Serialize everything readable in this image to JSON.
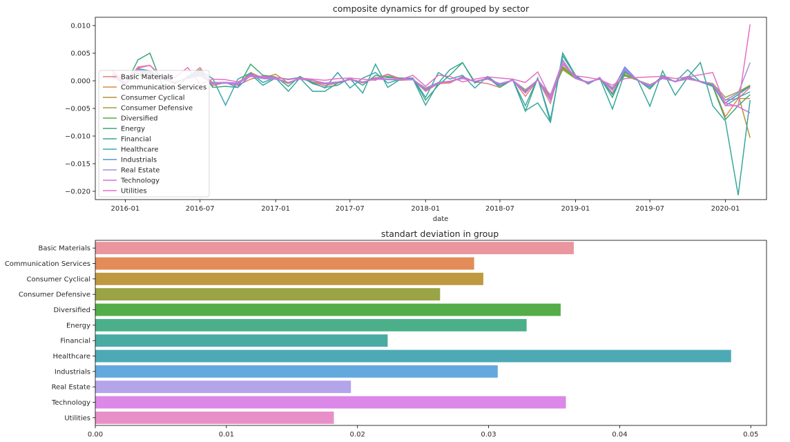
{
  "chart_data": [
    {
      "type": "line",
      "title": "composite dynamics for df grouped by sector",
      "xlabel": "date",
      "ylabel": "",
      "x": [
        "2015-12",
        "2016-01",
        "2016-02",
        "2016-03",
        "2016-04",
        "2016-05",
        "2016-06",
        "2016-07",
        "2016-08",
        "2016-09",
        "2016-10",
        "2016-11",
        "2016-12",
        "2017-01",
        "2017-02",
        "2017-03",
        "2017-04",
        "2017-05",
        "2017-06",
        "2017-07",
        "2017-08",
        "2017-09",
        "2017-10",
        "2017-11",
        "2017-12",
        "2018-01",
        "2018-02",
        "2018-03",
        "2018-04",
        "2018-05",
        "2018-06",
        "2018-07",
        "2018-08",
        "2018-09",
        "2018-10",
        "2018-11",
        "2018-12",
        "2019-01",
        "2019-02",
        "2019-03",
        "2019-04",
        "2019-05",
        "2019-06",
        "2019-07",
        "2019-08",
        "2019-09",
        "2019-10",
        "2019-11",
        "2019-12",
        "2020-01",
        "2020-02",
        "2020-03"
      ],
      "xticks": [
        "2016-01",
        "2016-07",
        "2017-01",
        "2017-07",
        "2018-01",
        "2018-07",
        "2019-01",
        "2019-07",
        "2020-01"
      ],
      "xlim": [
        "2015-10-20",
        "2020-04-10"
      ],
      "ylim": [
        -0.0215,
        0.0115
      ],
      "yticks": [
        0.01,
        0.005,
        0.0,
        -0.005,
        -0.01,
        -0.015,
        -0.02
      ],
      "ytick_labels": [
        "0.010",
        "0.005",
        "0.000",
        "−0.005",
        "−0.010",
        "−0.015",
        "−0.020"
      ],
      "grid": false,
      "legend": "center-left",
      "series": [
        {
          "name": "Basic Materials",
          "color": "#e8797f",
          "values": [
            0.0015,
            -0.0005,
            0.0025,
            0.0028,
            0.0004,
            -0.0003,
            0.0006,
            0.0024,
            -0.0009,
            -0.0003,
            -0.0008,
            0.0003,
            0.0009,
            0.0004,
            -0.0003,
            0.0004,
            -0.0002,
            -0.0009,
            -0.0004,
            0.0002,
            -0.0004,
            0.0006,
            0.0003,
            0.0001,
            0.0002,
            -0.0019,
            -0.0005,
            -0.0004,
            0.0008,
            -0.0002,
            -0.0005,
            -0.0012,
            0.0002,
            -0.0028,
            0.0002,
            -0.0041,
            0.0038,
            0.0004,
            -0.0004,
            0.0005,
            -0.0022,
            0.0017,
            0.0001,
            -0.0011,
            0.0009,
            -0.0002,
            0.0006,
            -0.0002,
            -0.0009,
            -0.0035,
            -0.0032,
            -0.0012
          ]
        },
        {
          "name": "Communication Services",
          "color": "#d98a3c",
          "values": [
            0.0008,
            -0.0004,
            0.0012,
            0.0018,
            0.0003,
            -0.0004,
            0.0005,
            0.0017,
            -0.0006,
            -0.0004,
            -0.0005,
            0.0013,
            0.0006,
            0.0004,
            -0.0005,
            0.0005,
            -0.0002,
            -0.0006,
            -0.0004,
            0.0003,
            -0.0003,
            0.0004,
            0.0002,
            0.0002,
            0.0003,
            -0.0017,
            -0.0003,
            -0.0002,
            0.0006,
            -0.0002,
            0.0005,
            -0.0007,
            0.0001,
            -0.0022,
            0.0002,
            -0.0033,
            0.0022,
            0.0006,
            -0.0003,
            0.0004,
            -0.0016,
            0.0012,
            0.0001,
            -0.0009,
            0.0006,
            -0.0001,
            0.0004,
            -0.0001,
            -0.0008,
            -0.0065,
            -0.0032,
            -0.0032
          ]
        },
        {
          "name": "Consumer Cyclical",
          "color": "#b49233",
          "values": [
            0.0006,
            -0.0005,
            0.0018,
            0.0012,
            0.0003,
            -0.0004,
            0.0005,
            0.0012,
            -0.0003,
            -0.0003,
            -0.0006,
            0.0015,
            0.0005,
            0.0012,
            -0.0004,
            0.0004,
            0.0001,
            -0.0006,
            -0.0003,
            0.0003,
            -0.0003,
            0.0004,
            0.0012,
            0.0004,
            0.0003,
            -0.0016,
            -0.0004,
            -0.0001,
            0.0005,
            -0.0001,
            0.0003,
            -0.0006,
            0.0001,
            -0.002,
            0.0002,
            -0.003,
            0.0026,
            0.0005,
            -0.0003,
            0.0004,
            -0.0015,
            0.0011,
            0.0001,
            -0.0009,
            0.0005,
            -0.0001,
            0.0004,
            -0.0001,
            -0.0007,
            -0.004,
            -0.0025,
            -0.0103
          ]
        },
        {
          "name": "Consumer Defensive",
          "color": "#9ba13e",
          "values": [
            0.0005,
            -0.0003,
            0.001,
            0.0009,
            0.0002,
            -0.0003,
            0.0004,
            0.0009,
            -0.0004,
            -0.0003,
            -0.0004,
            0.0008,
            0.0004,
            0.0003,
            -0.0003,
            0.0003,
            0.0001,
            -0.0004,
            -0.0002,
            0.0002,
            -0.0002,
            0.0003,
            0.0011,
            0.0002,
            0.0002,
            -0.0013,
            -0.0003,
            -0.0001,
            0.0004,
            -0.0001,
            0.0003,
            -0.0005,
            0.0001,
            -0.0016,
            0.0001,
            -0.0025,
            0.002,
            0.0004,
            -0.0002,
            0.0003,
            -0.0012,
            0.0009,
            0.0001,
            -0.0007,
            0.0004,
            -0.0001,
            0.0003,
            -0.0001,
            -0.0005,
            -0.003,
            -0.002,
            -0.0008
          ]
        },
        {
          "name": "Diversified",
          "color": "#50b13e",
          "values": [
            0.0007,
            -0.0004,
            0.0014,
            0.001,
            0.0003,
            -0.0003,
            0.0004,
            0.0012,
            -0.0005,
            -0.0003,
            -0.0005,
            0.001,
            0.0005,
            0.0004,
            -0.0004,
            0.0004,
            0.0001,
            -0.0005,
            -0.0003,
            0.0003,
            -0.0003,
            0.0004,
            0.0008,
            0.0003,
            0.0003,
            -0.0015,
            -0.0003,
            -0.0001,
            0.0005,
            -0.0001,
            0.0004,
            -0.0006,
            0.0001,
            -0.0018,
            0.0002,
            -0.0028,
            0.0024,
            0.0005,
            -0.0003,
            0.0004,
            -0.0014,
            0.001,
            0.0001,
            -0.0008,
            0.0005,
            -0.0001,
            0.0004,
            -0.0001,
            -0.0006,
            -0.0035,
            -0.0022,
            -0.0009
          ]
        },
        {
          "name": "Energy",
          "color": "#3ba778",
          "values": [
            0.001,
            -0.0008,
            0.0038,
            0.005,
            -0.001,
            -0.0015,
            0.0008,
            0.002,
            -0.0012,
            -0.001,
            -0.0012,
            0.003,
            0.001,
            0.0007,
            -0.001,
            0.0008,
            -0.0005,
            -0.0012,
            -0.0008,
            0.0005,
            -0.0008,
            0.001,
            0.0006,
            0.0005,
            0.0005,
            -0.0035,
            -0.0008,
            0.001,
            0.0033,
            -0.0004,
            0.0006,
            -0.0012,
            0.0003,
            -0.0055,
            0.0005,
            -0.0075,
            0.005,
            0.001,
            -0.0006,
            0.0006,
            -0.003,
            0.002,
            0.0002,
            -0.0015,
            0.001,
            -0.0002,
            0.0008,
            -0.0002,
            -0.001,
            -0.007,
            -0.0045,
            -0.0025
          ]
        },
        {
          "name": "Financial",
          "color": "#37a69b",
          "values": [
            0.0008,
            -0.0006,
            0.002,
            0.0015,
            0.0004,
            -0.0004,
            0.0006,
            0.0015,
            -0.0006,
            -0.0004,
            -0.0006,
            0.0012,
            -0.0008,
            0.0005,
            -0.0019,
            0.0005,
            -0.0019,
            -0.0019,
            -0.0004,
            0.0004,
            -0.0022,
            0.003,
            -0.0012,
            0.0003,
            0.0004,
            -0.0044,
            -0.0004,
            0.002,
            0.0033,
            -0.0002,
            0.0005,
            -0.0009,
            0.0002,
            -0.0054,
            -0.004,
            -0.0075,
            0.005,
            0.0008,
            -0.0005,
            0.0005,
            -0.0051,
            0.0015,
            0.0002,
            -0.0046,
            0.0018,
            -0.0026,
            0.0006,
            0.0033,
            -0.0045,
            -0.0073,
            -0.0207,
            -0.0035
          ]
        },
        {
          "name": "Healthcare",
          "color": "#3aa6b0",
          "values": [
            0.0012,
            -0.0007,
            0.0022,
            0.0018,
            0.0005,
            -0.0005,
            0.0007,
            0.0018,
            0.0004,
            -0.0044,
            0.0003,
            0.0014,
            -0.0003,
            0.0006,
            0.0003,
            0.0006,
            -0.0003,
            -0.0013,
            0.0015,
            -0.0013,
            0.0005,
            0.0015,
            -0.0004,
            0.0003,
            0.0005,
            -0.003,
            0.0015,
            0.0003,
            0.001,
            -0.0013,
            0.0008,
            -0.0008,
            0.0002,
            -0.0045,
            0.0005,
            -0.007,
            0.0045,
            0.0009,
            -0.0005,
            0.0006,
            -0.0025,
            0.0018,
            0.0002,
            -0.0012,
            0.0008,
            -0.0002,
            0.002,
            -0.0002,
            -0.0008,
            -0.0045,
            -0.003,
            -0.002
          ]
        },
        {
          "name": "Industrials",
          "color": "#4f97d6",
          "values": [
            0.0009,
            -0.0005,
            0.0018,
            0.0014,
            0.0004,
            -0.0004,
            0.0005,
            0.0014,
            -0.0005,
            -0.0003,
            -0.0012,
            0.001,
            0.0005,
            0.0004,
            -0.0004,
            0.0005,
            0.0001,
            -0.0005,
            -0.0003,
            0.0003,
            -0.0003,
            0.0005,
            0.0003,
            0.0003,
            0.0003,
            -0.0018,
            -0.0004,
            -0.0001,
            0.0006,
            -0.0001,
            0.0004,
            -0.0007,
            0.0001,
            -0.0022,
            0.0002,
            -0.0035,
            0.003,
            0.0006,
            -0.0004,
            0.0005,
            -0.0017,
            0.0025,
            0.0001,
            -0.001,
            0.0006,
            -0.0001,
            0.0005,
            -0.0001,
            -0.0007,
            -0.004,
            -0.0025,
            -0.001
          ]
        },
        {
          "name": "Real Estate",
          "color": "#a38fe0",
          "values": [
            0.0006,
            -0.0004,
            0.0012,
            0.001,
            0.0003,
            -0.0003,
            0.0004,
            0.001,
            -0.0004,
            -0.0003,
            -0.0004,
            0.0008,
            0.0004,
            0.0003,
            -0.0003,
            0.0003,
            0.0001,
            -0.0004,
            -0.0002,
            0.0002,
            -0.0002,
            0.0003,
            0.0002,
            0.0002,
            0.0002,
            -0.0014,
            -0.0003,
            -0.0001,
            0.0004,
            -0.0001,
            0.0003,
            -0.0005,
            0.0001,
            -0.0017,
            0.0001,
            -0.0026,
            0.0036,
            0.0004,
            -0.0002,
            0.0003,
            -0.0013,
            0.002,
            0.0001,
            -0.0008,
            0.0004,
            -0.0001,
            0.0003,
            -0.0001,
            -0.0006,
            -0.0035,
            -0.0022,
            0.0033
          ]
        },
        {
          "name": "Technology",
          "color": "#d26ee9",
          "values": [
            0.001,
            -0.0006,
            0.002,
            0.0016,
            0.0004,
            -0.0004,
            0.0006,
            0.0016,
            -0.0006,
            -0.0004,
            -0.0006,
            0.0012,
            0.0006,
            0.0005,
            -0.0004,
            0.0005,
            0.0001,
            -0.0006,
            -0.0003,
            0.0003,
            -0.0003,
            0.0005,
            0.0003,
            0.0003,
            0.0003,
            -0.0018,
            -0.0004,
            -0.0001,
            0.0006,
            -0.0001,
            0.0004,
            -0.0007,
            0.0001,
            -0.0022,
            0.0002,
            -0.0034,
            0.0032,
            0.0006,
            -0.0004,
            0.0005,
            -0.0017,
            0.0022,
            0.0001,
            -0.001,
            0.0006,
            -0.0001,
            0.0005,
            -0.0001,
            -0.0007,
            -0.004,
            -0.0047,
            -0.0058
          ]
        },
        {
          "name": "Utilities",
          "color": "#e66ec2",
          "values": [
            0.0019,
            -0.0004,
            0.0023,
            0.0028,
            0.0007,
            0.0006,
            0.0024,
            -0.0006,
            0.0003,
            0.0002,
            -0.0002,
            0.0009,
            0.0008,
            0.0006,
            0.0002,
            0.0005,
            0.0003,
            0.0001,
            0.0004,
            0.0005,
            0.0003,
            0.0001,
            0.0012,
            0.0002,
            0.001,
            -0.001,
            0.001,
            0.0008,
            -0.0002,
            0.0003,
            0.0007,
            0.0005,
            0.0003,
            -0.0003,
            0.0016,
            -0.003,
            0.003,
            0.0009,
            0.0006,
            0.0002,
            -0.0008,
            0.0004,
            0.0006,
            0.0007,
            0.0008,
            0.0004,
            0.0007,
            0.0011,
            0.0015,
            -0.0045,
            -0.0045,
            0.0102
          ]
        }
      ]
    },
    {
      "type": "bar",
      "orientation": "horizontal",
      "title": "standart deviation in group",
      "xlabel": "",
      "ylabel": "",
      "categories": [
        "Basic Materials",
        "Communication Services",
        "Consumer Cyclical",
        "Consumer Defensive",
        "Diversified",
        "Energy",
        "Financial",
        "Healthcare",
        "Industrials",
        "Real Estate",
        "Technology",
        "Utilities"
      ],
      "values": [
        0.0365,
        0.0289,
        0.0296,
        0.0263,
        0.0355,
        0.0329,
        0.0223,
        0.0485,
        0.0307,
        0.0195,
        0.0359,
        0.0182
      ],
      "colors": [
        "#ea969e",
        "#e38c58",
        "#bf993f",
        "#9aa345",
        "#55ad49",
        "#4bb089",
        "#4aaba3",
        "#4daab5",
        "#64a9dd",
        "#b4a4ea",
        "#dc88e8",
        "#e88fc9"
      ],
      "xlim": [
        0,
        0.0512
      ],
      "xticks": [
        0.0,
        0.01,
        0.02,
        0.03,
        0.04,
        0.05
      ],
      "xtick_labels": [
        "0.00",
        "0.01",
        "0.02",
        "0.03",
        "0.04",
        "0.05"
      ],
      "grid": false
    }
  ]
}
